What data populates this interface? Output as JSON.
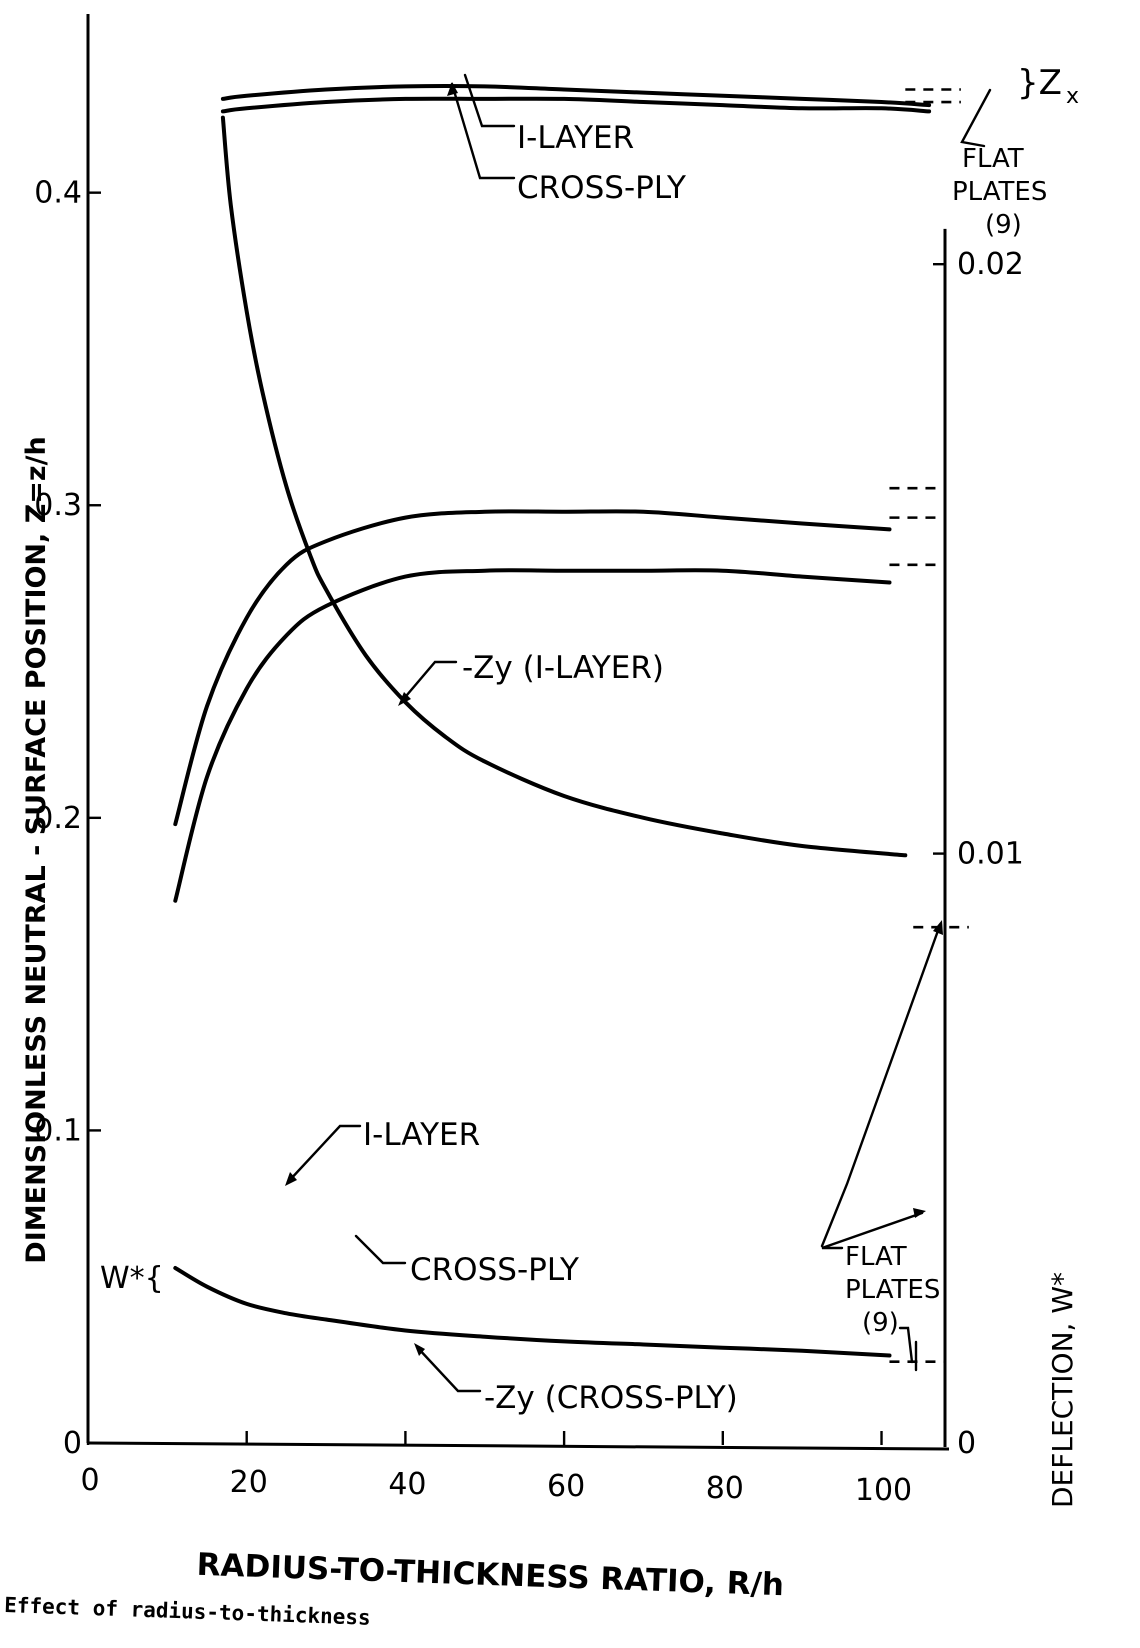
{
  "chart_data": {
    "type": "line",
    "xlabel": "RADIUS-TO-THICKNESS  RATIO,  R/h",
    "ylabel": "DIMENSIONLESS  NEUTRAL - SURFACE  POSITION,  Z=z/h",
    "y2label": "DEFLECTION,  W*",
    "xlim": [
      0,
      108
    ],
    "ylim": [
      0,
      0.445
    ],
    "y2lim": [
      0,
      0.0236
    ],
    "x_ticks": [
      0,
      20,
      40,
      60,
      80,
      100
    ],
    "x_tick_labels": [
      "0",
      "20",
      "40",
      "60",
      "80",
      "100"
    ],
    "y_ticks": [
      0,
      0.1,
      0.2,
      0.3,
      0.4
    ],
    "y_tick_labels": [
      "0",
      "0.1",
      "0.2",
      "0.3",
      "0.4"
    ],
    "y2_ticks": [
      0,
      0.01,
      0.02
    ],
    "y2_tick_labels": [
      "0",
      "0.01",
      "0.02"
    ],
    "grid": false,
    "legend": "none",
    "series": [
      {
        "name": "1-LAYER",
        "x": [
          17,
          20,
          30,
          40,
          50,
          60,
          70,
          80,
          90,
          100,
          106
        ],
        "y": [
          0.43,
          0.431,
          0.433,
          0.434,
          0.434,
          0.433,
          0.432,
          0.431,
          0.43,
          0.429,
          0.428
        ]
      },
      {
        "name": "CROSS-PLY",
        "x": [
          17,
          20,
          30,
          40,
          50,
          60,
          70,
          80,
          90,
          100,
          106
        ],
        "y": [
          0.426,
          0.427,
          0.429,
          0.43,
          0.43,
          0.43,
          0.429,
          0.428,
          0.427,
          0.427,
          0.426
        ]
      },
      {
        "name": "-Zy (1-LAYER)",
        "x": [
          17,
          18,
          20,
          22,
          25,
          28,
          30,
          35,
          40,
          45,
          50,
          60,
          70,
          80,
          90,
          103
        ],
        "y": [
          0.424,
          0.396,
          0.362,
          0.336,
          0.306,
          0.284,
          0.273,
          0.252,
          0.237,
          0.226,
          0.218,
          0.207,
          0.2,
          0.195,
          0.191,
          0.188
        ]
      },
      {
        "name": "1-LAYER",
        "x": [
          11,
          15,
          20,
          25,
          30,
          40,
          50,
          60,
          70,
          80,
          90,
          101
        ],
        "y": [
          0.0105,
          0.0125,
          0.014,
          0.0149,
          0.0153,
          0.0157,
          0.0158,
          0.0158,
          0.0158,
          0.0157,
          0.0156,
          0.0155
        ]
      },
      {
        "name": "CROSS-PLY",
        "x": [
          11,
          15,
          20,
          25,
          30,
          40,
          50,
          60,
          70,
          80,
          90,
          101
        ],
        "y": [
          0.0092,
          0.0113,
          0.0128,
          0.0137,
          0.0142,
          0.0147,
          0.0148,
          0.0148,
          0.0148,
          0.0148,
          0.0147,
          0.0146
        ]
      },
      {
        "name": "-Zy (CROSS-PLY)",
        "x": [
          11,
          15,
          20,
          25,
          30,
          40,
          50,
          60,
          70,
          80,
          90,
          101
        ],
        "y": [
          0.056,
          0.05,
          0.0445,
          0.0415,
          0.0395,
          0.036,
          0.034,
          0.0325,
          0.0315,
          0.0305,
          0.0295,
          0.028
        ]
      }
    ],
    "reference_values": [
      {
        "label": "FLAT PLATES (9)",
        "y": [
          0.433,
          0.429
        ]
      },
      {
        "label": "FLAT PLATES (9)",
        "y": [
          0.0162,
          0.0157,
          0.0149
        ]
      },
      {
        "label": "FLAT PLATES (9)",
        "y": [
          0.026,
          0.165
        ]
      }
    ],
    "annotations": [
      "I-LAYER",
      "CROSS-PLY",
      "}Z",
      "x",
      "FLAT",
      "PLATES",
      "(9)",
      "-Zy (I-LAYER)",
      "I-LAYER",
      "CROSS-PLY",
      "FLAT",
      "PLATES",
      "(9)",
      "-Zy (CROSS-PLY)",
      "W*{"
    ],
    "caption": "Effect of radius-to-thickness"
  }
}
